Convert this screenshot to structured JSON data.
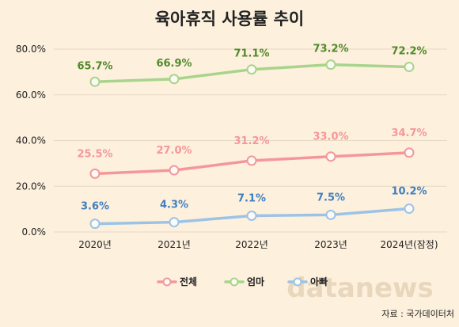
{
  "chart_data": {
    "type": "line",
    "title": "육아휴직 사용률 추이",
    "categories": [
      "2020년",
      "2021년",
      "2022년",
      "2023년",
      "2024년(잠정)"
    ],
    "ylim": [
      0,
      80
    ],
    "yticks": [
      "0.0%",
      "20.0%",
      "40.0%",
      "60.0%",
      "80.0%"
    ],
    "grid": "horizontal",
    "legend_position": "bottom-center",
    "series": [
      {
        "name": "전체",
        "color": "#f4979b",
        "values": [
          25.5,
          27.0,
          31.2,
          33.0,
          34.7
        ],
        "labels": [
          "25.5%",
          "27.0%",
          "31.2%",
          "33.0%",
          "34.7%"
        ]
      },
      {
        "name": "엄마",
        "color": "#a8d48c",
        "label_color": "#4f8a2a",
        "values": [
          65.7,
          66.9,
          71.1,
          73.2,
          72.2
        ],
        "labels": [
          "65.7%",
          "66.9%",
          "71.1%",
          "73.2%",
          "72.2%"
        ]
      },
      {
        "name": "아빠",
        "color": "#9cc3e6",
        "label_color": "#3f7fc0",
        "values": [
          3.6,
          4.3,
          7.1,
          7.5,
          10.2
        ],
        "labels": [
          "3.6%",
          "4.3%",
          "7.1%",
          "7.5%",
          "10.2%"
        ]
      }
    ]
  },
  "watermark": "datanews",
  "source": "자료 : 국가데이터처"
}
